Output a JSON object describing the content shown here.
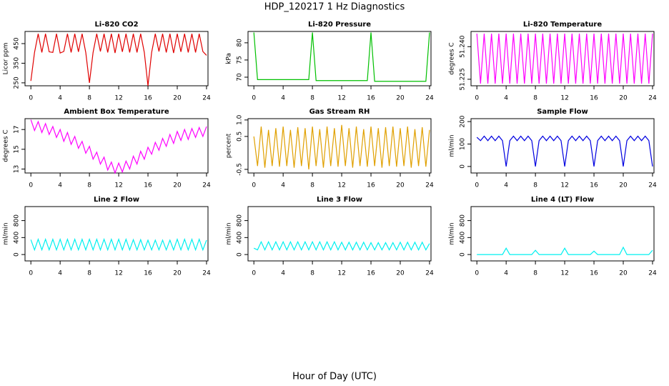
{
  "title": "HDP_120217  1 Hz Diagnostics",
  "x_label": "Hour of Day (UTC)",
  "chart_data": [
    {
      "type": "line",
      "title": "Li-820 CO2",
      "y_label": "Licor ppm",
      "color": "#e00000",
      "x": [
        0,
        0.5,
        1,
        1.5,
        2,
        2.5,
        3,
        3.5,
        4,
        4.5,
        5,
        5.5,
        6,
        6.5,
        7,
        7.5,
        8,
        8.5,
        9,
        9.5,
        10,
        10.5,
        11,
        11.5,
        12,
        12.5,
        13,
        13.5,
        14,
        14.5,
        15,
        15.5,
        16,
        16.5,
        17,
        17.5,
        18,
        18.5,
        19,
        19.5,
        20,
        20.5,
        21,
        21.5,
        22,
        22.5,
        23,
        23.5,
        24
      ],
      "values": [
        260,
        405,
        500,
        405,
        500,
        408,
        405,
        500,
        402,
        410,
        500,
        405,
        500,
        408,
        500,
        405,
        250,
        405,
        500,
        410,
        500,
        405,
        500,
        402,
        500,
        408,
        500,
        405,
        500,
        405,
        500,
        405,
        235,
        405,
        500,
        410,
        500,
        405,
        500,
        402,
        500,
        408,
        500,
        405,
        500,
        405,
        500,
        410,
        390
      ],
      "xlim": [
        -0.8,
        24.2
      ],
      "xticks": [
        0,
        4,
        8,
        12,
        16,
        20,
        24
      ],
      "ylim": [
        235,
        512
      ],
      "yticks": [
        250,
        350,
        450
      ]
    },
    {
      "type": "line",
      "title": "Li-820 Pressure",
      "y_label": "kPa",
      "color": "#00c000",
      "x": [
        0,
        0.5,
        1,
        1.5,
        2,
        2.5,
        3,
        3.5,
        4,
        4.5,
        5,
        5.5,
        6,
        6.5,
        7,
        7.5,
        8,
        8.5,
        9,
        9.5,
        10,
        10.5,
        11,
        11.5,
        12,
        12.5,
        13,
        13.5,
        14,
        14.5,
        15,
        15.5,
        16,
        16.5,
        17,
        17.5,
        18,
        18.5,
        19,
        19.5,
        20,
        20.5,
        21,
        21.5,
        22,
        22.5,
        23,
        23.5,
        24
      ],
      "values": [
        83,
        69.3,
        69.3,
        69.3,
        69.3,
        69.3,
        69.3,
        69.3,
        69.3,
        69.3,
        69.3,
        69.3,
        69.3,
        69.3,
        69.3,
        69.3,
        83,
        69,
        69,
        69,
        69,
        69,
        69,
        69,
        69,
        69,
        69,
        69,
        69,
        69,
        69,
        69,
        83,
        68.8,
        68.8,
        68.8,
        68.8,
        68.8,
        68.8,
        68.8,
        68.8,
        68.8,
        68.8,
        68.8,
        68.8,
        68.8,
        68.8,
        68.8,
        83
      ],
      "xlim": [
        -0.8,
        24.2
      ],
      "xticks": [
        0,
        4,
        8,
        12,
        16,
        20,
        24
      ],
      "ylim": [
        67.5,
        83.3
      ],
      "yticks": [
        70,
        75,
        80
      ]
    },
    {
      "type": "line",
      "title": "Li-820 Temperature",
      "y_label": "degrees C",
      "color": "#ff00ff",
      "x": [
        0,
        0.5,
        1,
        1.5,
        2,
        2.5,
        3,
        3.5,
        4,
        4.5,
        5,
        5.5,
        6,
        6.5,
        7,
        7.5,
        8,
        8.5,
        9,
        9.5,
        10,
        10.5,
        11,
        11.5,
        12,
        12.5,
        13,
        13.5,
        14,
        14.5,
        15,
        15.5,
        16,
        16.5,
        17,
        17.5,
        18,
        18.5,
        19,
        19.5,
        20,
        20.5,
        21,
        21.5,
        22,
        22.5,
        23,
        23.5,
        24
      ],
      "values": [
        51.246,
        51.223,
        51.246,
        51.223,
        51.246,
        51.223,
        51.246,
        51.223,
        51.246,
        51.223,
        51.246,
        51.223,
        51.246,
        51.223,
        51.246,
        51.223,
        51.246,
        51.223,
        51.246,
        51.223,
        51.246,
        51.223,
        51.246,
        51.223,
        51.246,
        51.223,
        51.246,
        51.223,
        51.246,
        51.223,
        51.246,
        51.223,
        51.246,
        51.223,
        51.246,
        51.223,
        51.246,
        51.223,
        51.246,
        51.223,
        51.246,
        51.223,
        51.246,
        51.223,
        51.246,
        51.223,
        51.246,
        51.223,
        51.246
      ],
      "xlim": [
        -0.8,
        24.2
      ],
      "xticks": [
        0,
        4,
        8,
        12,
        16,
        20,
        24
      ],
      "ylim": [
        51.222,
        51.247
      ],
      "yticks": [
        51.225,
        {
          "value": 51.24,
          "label": "51.240"
        }
      ]
    },
    {
      "type": "line",
      "title": "Ambient Box Temperature",
      "y_label": "degrees C",
      "color": "#ff00ff",
      "x": [
        0,
        0.5,
        1,
        1.5,
        2,
        2.5,
        3,
        3.5,
        4,
        4.5,
        5,
        5.5,
        6,
        6.5,
        7,
        7.5,
        8,
        8.5,
        9,
        9.5,
        10,
        10.5,
        11,
        11.5,
        12,
        12.5,
        13,
        13.5,
        14,
        14.5,
        15,
        15.5,
        16,
        16.5,
        17,
        17.5,
        18,
        18.5,
        19,
        19.5,
        20,
        20.5,
        21,
        21.5,
        22,
        22.5,
        23,
        23.5,
        24
      ],
      "values": [
        18.0,
        16.9,
        17.8,
        16.7,
        17.6,
        16.5,
        17.3,
        16.2,
        17.0,
        15.8,
        16.7,
        15.5,
        16.3,
        15.1,
        15.8,
        14.6,
        15.3,
        14.0,
        14.7,
        13.5,
        14.2,
        12.9,
        13.7,
        12.6,
        13.6,
        12.7,
        13.8,
        13.0,
        14.3,
        13.5,
        14.8,
        14.0,
        15.2,
        14.5,
        15.7,
        14.9,
        16.1,
        15.3,
        16.5,
        15.6,
        16.8,
        15.9,
        17.0,
        16.0,
        17.1,
        16.2,
        17.2,
        16.3,
        17.3
      ],
      "xlim": [
        -0.8,
        24.2
      ],
      "xticks": [
        0,
        4,
        8,
        12,
        16,
        20,
        24
      ],
      "ylim": [
        12.6,
        18.1
      ],
      "yticks": [
        13,
        15,
        17
      ]
    },
    {
      "type": "line",
      "title": "Gas Stream RH",
      "y_label": "percent",
      "color": "#e0a000",
      "x": [
        0,
        0.5,
        1,
        1.5,
        2,
        2.5,
        3,
        3.5,
        4,
        4.5,
        5,
        5.5,
        6,
        6.5,
        7,
        7.5,
        8,
        8.5,
        9,
        9.5,
        10,
        10.5,
        11,
        11.5,
        12,
        12.5,
        13,
        13.5,
        14,
        14.5,
        15,
        15.5,
        16,
        16.5,
        17,
        17.5,
        18,
        18.5,
        19,
        19.5,
        20,
        20.5,
        21,
        21.5,
        22,
        22.5,
        23,
        23.5,
        24
      ],
      "values": [
        0.5,
        -0.4,
        0.8,
        -0.45,
        0.7,
        -0.4,
        0.75,
        -0.42,
        0.8,
        -0.4,
        0.7,
        -0.45,
        0.78,
        -0.4,
        0.75,
        -0.5,
        0.8,
        -0.4,
        0.72,
        -0.45,
        0.8,
        -0.4,
        0.75,
        -0.42,
        0.85,
        -0.4,
        0.75,
        -0.45,
        0.8,
        -0.4,
        0.72,
        -0.42,
        0.8,
        -0.4,
        0.75,
        -0.45,
        0.78,
        -0.4,
        0.8,
        -0.42,
        0.75,
        -0.4,
        0.8,
        -0.45,
        0.72,
        -0.4,
        0.78,
        -0.42,
        0.7
      ],
      "xlim": [
        -0.8,
        24.2
      ],
      "xticks": [
        0,
        4,
        8,
        12,
        16,
        20,
        24
      ],
      "ylim": [
        -0.61,
        1.04
      ],
      "yticks": [
        -0.5,
        0.5,
        {
          "value": 1,
          "label": "1.0"
        }
      ]
    },
    {
      "type": "line",
      "title": "Sample Flow",
      "y_label": "ml/min",
      "color": "#0000e0",
      "x": [
        0,
        0.5,
        1,
        1.5,
        2,
        2.5,
        3,
        3.5,
        4,
        4.5,
        5,
        5.5,
        6,
        6.5,
        7,
        7.5,
        8,
        8.5,
        9,
        9.5,
        10,
        10.5,
        11,
        11.5,
        12,
        12.5,
        13,
        13.5,
        14,
        14.5,
        15,
        15.5,
        16,
        16.5,
        17,
        17.5,
        18,
        18.5,
        19,
        19.5,
        20,
        20.5,
        21,
        21.5,
        22,
        22.5,
        23,
        23.5,
        24
      ],
      "values": [
        130,
        115,
        135,
        115,
        135,
        115,
        135,
        115,
        0,
        115,
        135,
        115,
        135,
        115,
        135,
        115,
        0,
        115,
        135,
        115,
        135,
        115,
        135,
        115,
        0,
        115,
        135,
        115,
        135,
        115,
        135,
        115,
        0,
        115,
        135,
        115,
        135,
        115,
        135,
        115,
        0,
        115,
        135,
        115,
        135,
        115,
        135,
        115,
        0
      ],
      "xlim": [
        -0.8,
        24.2
      ],
      "xticks": [
        0,
        4,
        8,
        12,
        16,
        20,
        24
      ],
      "ylim": [
        -29,
        213
      ],
      "yticks": [
        0,
        100,
        200
      ]
    },
    {
      "type": "line",
      "title": "Line 2 Flow",
      "y_label": "ml/min",
      "color": "#00f0f0",
      "x": [
        0,
        0.5,
        1,
        1.5,
        2,
        2.5,
        3,
        3.5,
        4,
        4.5,
        5,
        5.5,
        6,
        6.5,
        7,
        7.5,
        8,
        8.5,
        9,
        9.5,
        10,
        10.5,
        11,
        11.5,
        12,
        12.5,
        13,
        13.5,
        14,
        14.5,
        15,
        15.5,
        16,
        16.5,
        17,
        17.5,
        18,
        18.5,
        19,
        19.5,
        20,
        20.5,
        21,
        21.5,
        22,
        22.5,
        23,
        23.5,
        24
      ],
      "values": [
        350,
        110,
        360,
        110,
        360,
        110,
        360,
        110,
        360,
        110,
        360,
        110,
        360,
        110,
        360,
        110,
        360,
        110,
        360,
        110,
        360,
        110,
        360,
        110,
        360,
        110,
        360,
        110,
        350,
        110,
        350,
        110,
        340,
        110,
        340,
        110,
        340,
        110,
        340,
        110,
        360,
        110,
        360,
        110,
        360,
        110,
        360,
        110,
        340
      ],
      "xlim": [
        -0.8,
        24.2
      ],
      "xticks": [
        0,
        4,
        8,
        12,
        16,
        20,
        24
      ],
      "ylim": [
        -150,
        1130
      ],
      "yticks": [
        0,
        400,
        800
      ]
    },
    {
      "type": "line",
      "title": "Line 3 Flow",
      "y_label": "ml/min",
      "color": "#00f0f0",
      "x": [
        0,
        0.5,
        1,
        1.5,
        2,
        2.5,
        3,
        3.5,
        4,
        4.5,
        5,
        5.5,
        6,
        6.5,
        7,
        7.5,
        8,
        8.5,
        9,
        9.5,
        10,
        10.5,
        11,
        11.5,
        12,
        12.5,
        13,
        13.5,
        14,
        14.5,
        15,
        15.5,
        16,
        16.5,
        17,
        17.5,
        18,
        18.5,
        19,
        19.5,
        20,
        20.5,
        21,
        21.5,
        22,
        22.5,
        23,
        23.5,
        24
      ],
      "values": [
        150,
        110,
        300,
        110,
        300,
        110,
        300,
        110,
        300,
        110,
        300,
        110,
        300,
        110,
        300,
        110,
        300,
        110,
        300,
        110,
        300,
        110,
        300,
        110,
        290,
        110,
        290,
        110,
        290,
        110,
        290,
        110,
        280,
        110,
        280,
        110,
        280,
        110,
        280,
        110,
        290,
        110,
        290,
        110,
        290,
        110,
        290,
        110,
        260
      ],
      "xlim": [
        -0.8,
        24.2
      ],
      "xticks": [
        0,
        4,
        8,
        12,
        16,
        20,
        24
      ],
      "ylim": [
        -150,
        1130
      ],
      "yticks": [
        0,
        400,
        800
      ]
    },
    {
      "type": "line",
      "title": "Line 4 (LT) Flow",
      "y_label": "ml/min",
      "color": "#00f0f0",
      "x": [
        0,
        0.5,
        1,
        1.5,
        2,
        2.5,
        3,
        3.5,
        4,
        4.5,
        5,
        5.5,
        6,
        6.5,
        7,
        7.5,
        8,
        8.5,
        9,
        9.5,
        10,
        10.5,
        11,
        11.5,
        12,
        12.5,
        13,
        13.5,
        14,
        14.5,
        15,
        15.5,
        16,
        16.5,
        17,
        17.5,
        18,
        18.5,
        19,
        19.5,
        20,
        20.5,
        21,
        21.5,
        22,
        22.5,
        23,
        23.5,
        24
      ],
      "values": [
        0,
        0,
        0,
        0,
        0,
        0,
        0,
        0,
        150,
        0,
        0,
        0,
        0,
        0,
        0,
        0,
        100,
        0,
        0,
        0,
        0,
        0,
        0,
        0,
        150,
        0,
        0,
        0,
        0,
        0,
        0,
        0,
        80,
        0,
        0,
        0,
        0,
        0,
        0,
        0,
        170,
        0,
        0,
        0,
        0,
        0,
        0,
        0,
        100
      ],
      "xlim": [
        -0.8,
        24.2
      ],
      "xticks": [
        0,
        4,
        8,
        12,
        16,
        20,
        24
      ],
      "ylim": [
        -150,
        1130
      ],
      "yticks": [
        0,
        400,
        800
      ]
    }
  ]
}
